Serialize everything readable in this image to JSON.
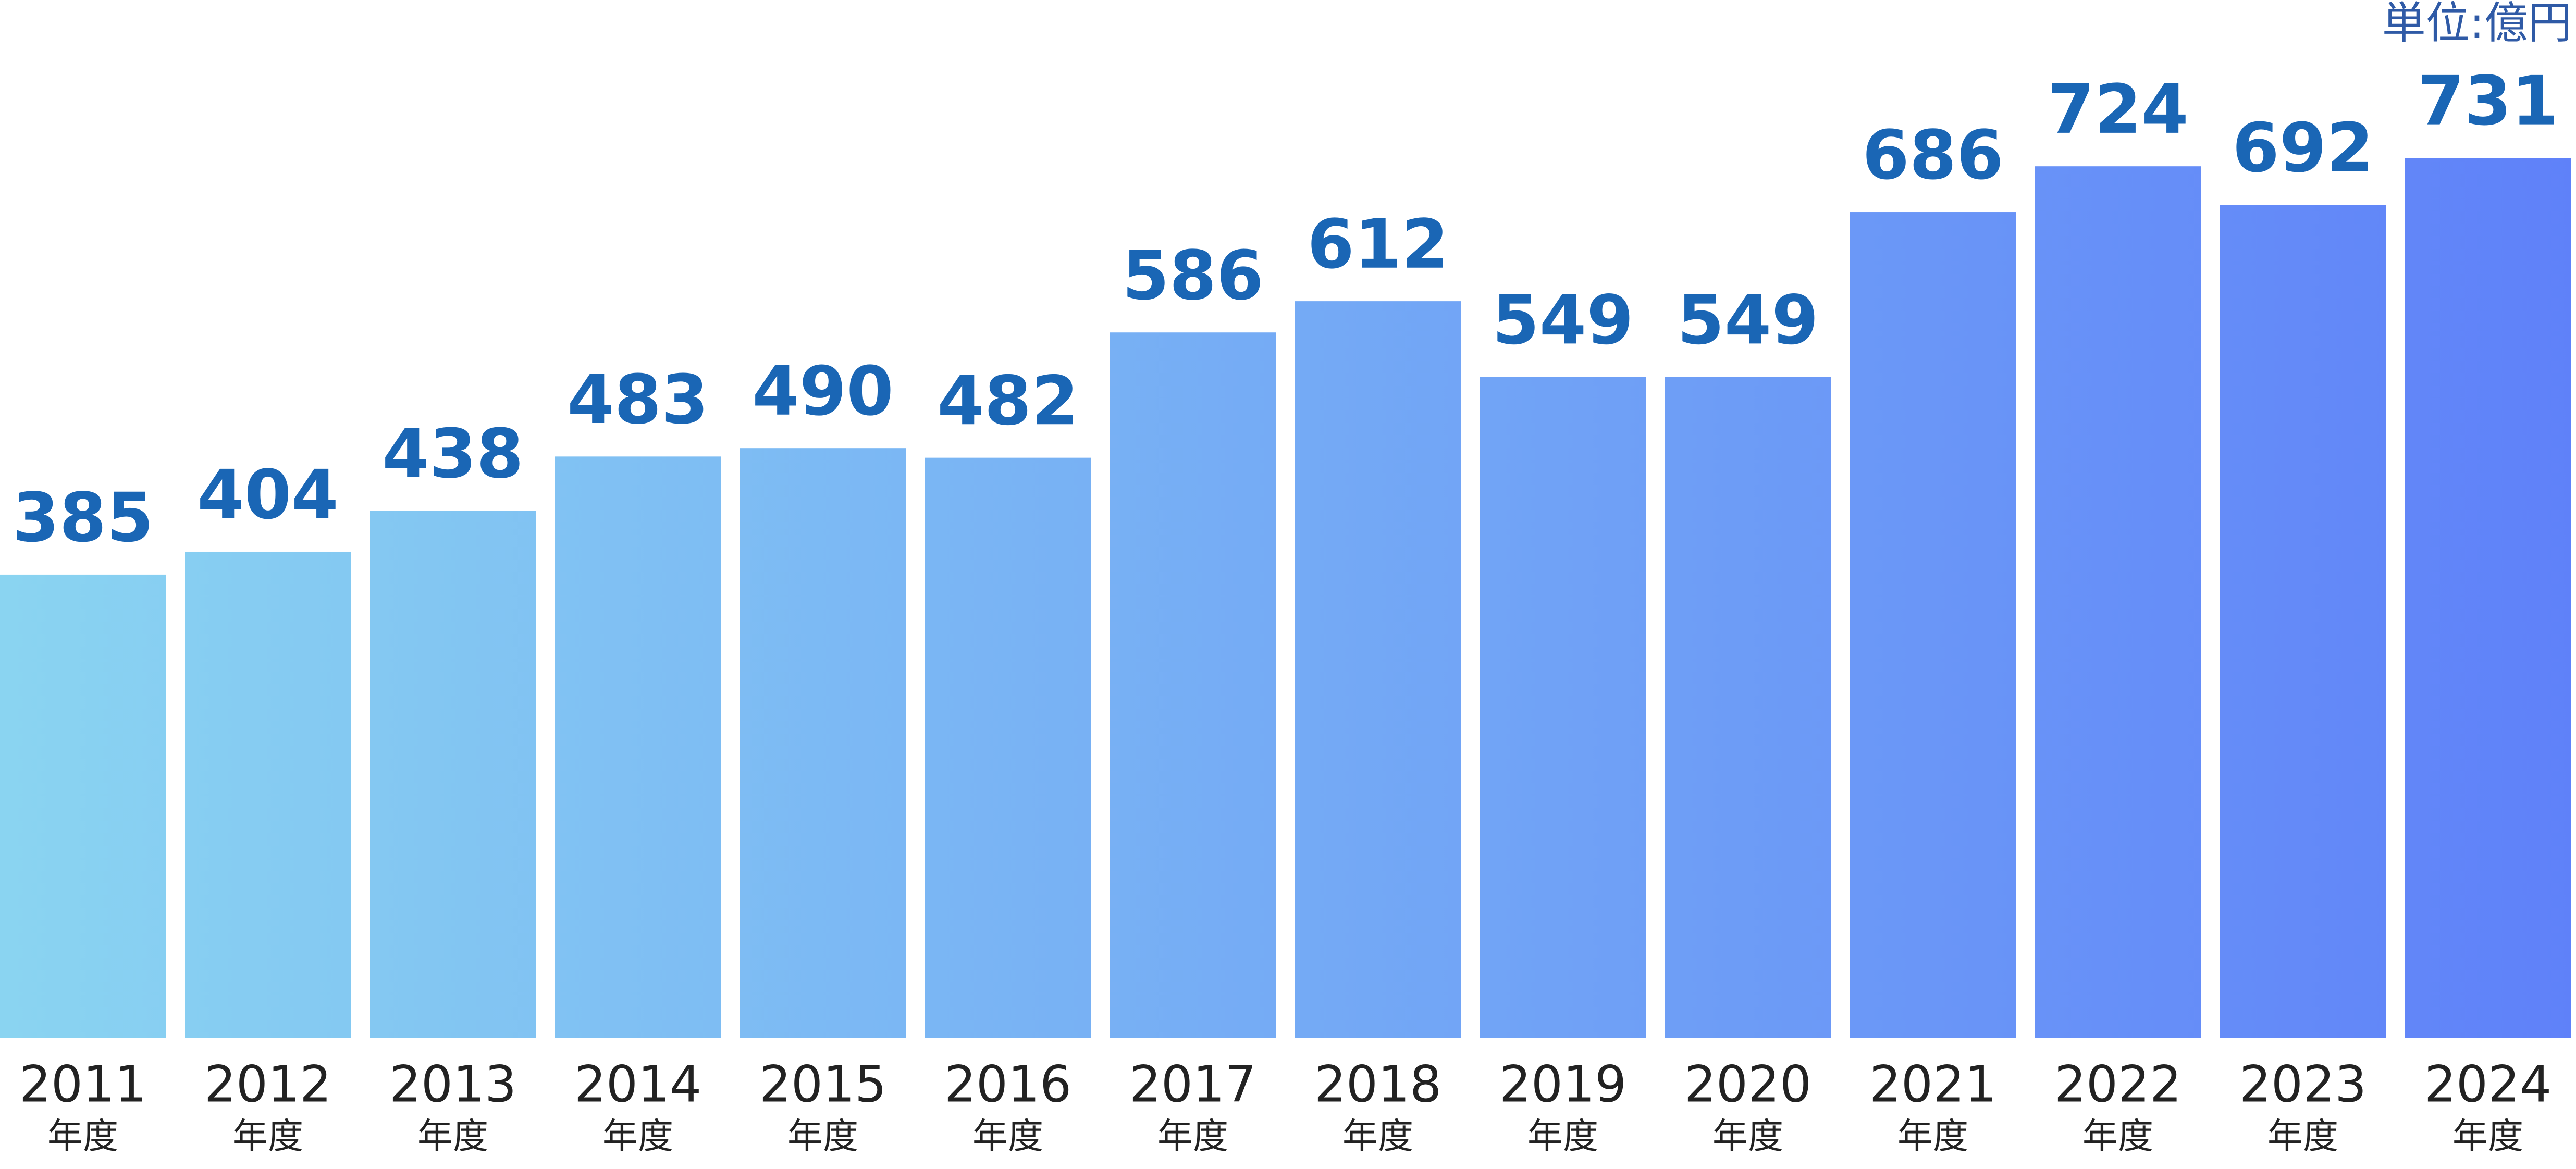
{
  "chart_data": {
    "type": "bar",
    "unit_label": "単位:億円",
    "categories": [
      "2011",
      "2012",
      "2013",
      "2014",
      "2015",
      "2016",
      "2017",
      "2018",
      "2019",
      "2020",
      "2021",
      "2022",
      "2023",
      "2024"
    ],
    "category_suffix": "年度",
    "values": [
      385,
      404,
      438,
      483,
      490,
      482,
      586,
      612,
      549,
      549,
      686,
      724,
      692,
      731
    ],
    "color_start": "#8ad4f1",
    "color_end": "#5f81f9",
    "value_label_color": "#1a66b5",
    "unit_label_color": "#2f5aa6"
  }
}
